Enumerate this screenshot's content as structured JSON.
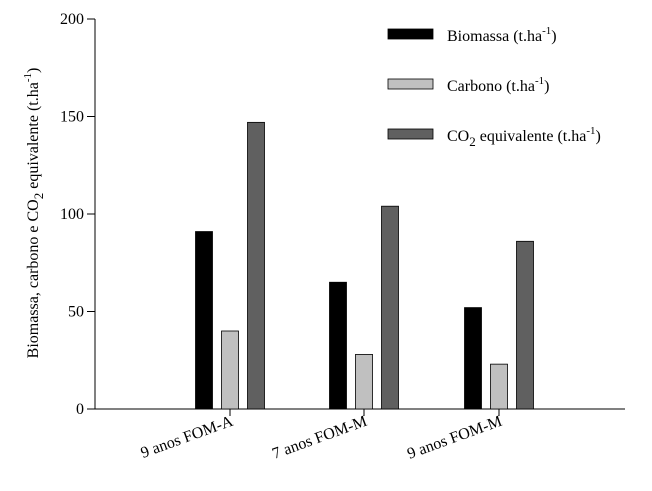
{
  "chart_data": {
    "type": "bar",
    "title": "",
    "xlabel": "",
    "ylabel": {
      "part1": "Biomassa, carbono e CO",
      "sub": "2",
      "part2": " equivalente (t.ha",
      "sup": "-1",
      "part3": ")"
    },
    "ylim": [
      0,
      200
    ],
    "yticks": [
      "0",
      "50",
      "100",
      "150",
      "200"
    ],
    "categories": [
      "9 anos FOM-A",
      "7 anos FOM-M",
      "9 anos FOM-M"
    ],
    "series": [
      {
        "name": "Biomassa (t.ha-1)",
        "legend": {
          "base": "Biomassa (t.ha",
          "sup": "-1",
          "end": ")"
        },
        "color": "#000000",
        "values": [
          91,
          65,
          52
        ]
      },
      {
        "name": "Carbono (t.ha-1)",
        "legend": {
          "base": "Carbono (t.ha",
          "sup": "-1",
          "end": ")"
        },
        "color": "#c0c0c0",
        "values": [
          40,
          28,
          23
        ]
      },
      {
        "name": "CO2 equivalente (t.ha-1)",
        "legend": {
          "base": "CO",
          "sub": "2",
          "mid": " equivalente (t.ha",
          "sup": "-1",
          "end": ")"
        },
        "color": "#606060",
        "values": [
          147,
          104,
          86
        ]
      }
    ],
    "legend_position": "top-right",
    "grid": false
  }
}
